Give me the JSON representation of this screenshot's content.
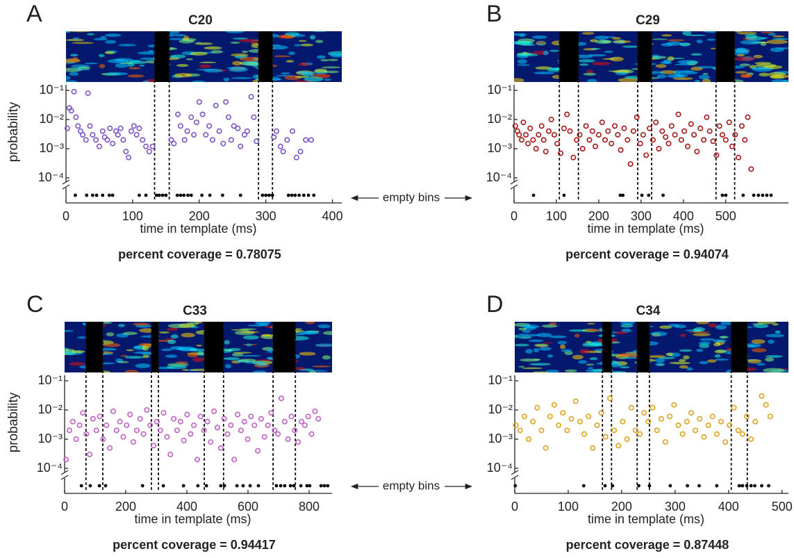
{
  "annotations": [
    "empty bins",
    "empty bins"
  ],
  "chart_data": [
    {
      "type": "scatter",
      "panel_label": "A",
      "title": "C20",
      "ylabel": "probability",
      "xlabel": "time in template (ms)",
      "footer": "percent coverage = 0.78075",
      "color": "#7b52c9",
      "yscale": "log",
      "xlim": [
        0,
        414
      ],
      "xticks": [
        0,
        100,
        200,
        300,
        400
      ],
      "ylim": [
        0.0001,
        0.1
      ],
      "yticks": [
        {
          "value": 0.1,
          "label": "10⁻¹"
        },
        {
          "value": 0.01,
          "label": "10⁻²"
        },
        {
          "value": 0.001,
          "label": "10⁻³"
        },
        {
          "value": 0.0001,
          "label": "10⁻⁴"
        }
      ],
      "dashed_lines": [
        133,
        155,
        289,
        310
      ],
      "empty_bins": [
        14,
        31,
        40,
        46,
        55,
        65,
        70,
        110,
        120,
        136,
        140,
        145,
        150,
        167,
        172,
        177,
        183,
        188,
        204,
        216,
        235,
        262,
        295,
        300,
        305,
        310,
        334,
        339,
        344,
        350,
        357,
        364,
        372
      ],
      "x": [
        2,
        5,
        8,
        12,
        15,
        18,
        22,
        25,
        30,
        33,
        36,
        40,
        45,
        50,
        55,
        58,
        62,
        66,
        70,
        75,
        78,
        82,
        86,
        90,
        94,
        98,
        102,
        106,
        110,
        115,
        120,
        125,
        130,
        158,
        162,
        168,
        172,
        178,
        182,
        188,
        192,
        196,
        200,
        205,
        210,
        215,
        220,
        225,
        230,
        236,
        240,
        244,
        248,
        252,
        258,
        262,
        268,
        272,
        278,
        282,
        286,
        312,
        316,
        322,
        326,
        332,
        340,
        346,
        352,
        360,
        368
      ],
      "values": [
        0.005,
        0.025,
        0.02,
        0.09,
        0.012,
        0.006,
        0.004,
        0.003,
        0.002,
        0.08,
        0.006,
        0.003,
        0.002,
        0.0012,
        0.004,
        0.0025,
        0.002,
        0.005,
        0.0015,
        0.004,
        0.003,
        0.005,
        0.002,
        0.0008,
        0.0005,
        0.004,
        0.006,
        0.003,
        0.005,
        0.002,
        0.0012,
        0.0008,
        0.0012,
        0.002,
        0.0015,
        0.015,
        0.006,
        0.002,
        0.004,
        0.012,
        0.003,
        0.008,
        0.04,
        0.015,
        0.003,
        0.006,
        0.002,
        0.03,
        0.004,
        0.0015,
        0.04,
        0.012,
        0.002,
        0.006,
        0.005,
        0.0012,
        0.003,
        0.004,
        0.06,
        0.012,
        0.0018,
        0.0025,
        0.004,
        0.0012,
        0.0008,
        0.002,
        0.004,
        0.0005,
        0.0008,
        0.002,
        0.002
      ]
    },
    {
      "type": "scatter",
      "panel_label": "B",
      "title": "C29",
      "xlabel": "time in template (ms)",
      "footer": "percent coverage = 0.94074",
      "color": "#a51515",
      "yscale": "log",
      "xlim": [
        0,
        648
      ],
      "xticks": [
        0,
        100,
        200,
        300,
        400,
        500
      ],
      "ylim": [
        0.0001,
        0.1
      ],
      "yticks": [
        {
          "value": 0.1,
          "label": "10⁻¹"
        },
        {
          "value": 0.01,
          "label": "10⁻²"
        },
        {
          "value": 0.001,
          "label": "10⁻³"
        },
        {
          "value": 0.0001,
          "label": "10⁻⁴"
        }
      ],
      "dashed_lines": [
        107,
        152,
        292,
        325,
        477,
        521
      ],
      "empty_bins": [
        46,
        118,
        251,
        257,
        302,
        318,
        352,
        492,
        500,
        541,
        566,
        577,
        587,
        597,
        607
      ],
      "x": [
        3,
        8,
        12,
        18,
        22,
        28,
        33,
        38,
        45,
        52,
        58,
        65,
        70,
        75,
        82,
        88,
        95,
        102,
        110,
        118,
        125,
        132,
        140,
        148,
        155,
        162,
        170,
        178,
        185,
        192,
        200,
        208,
        215,
        222,
        230,
        238,
        245,
        252,
        260,
        268,
        275,
        282,
        290,
        298,
        305,
        312,
        320,
        328,
        335,
        342,
        350,
        358,
        365,
        372,
        380,
        388,
        395,
        402,
        410,
        418,
        425,
        432,
        440,
        448,
        455,
        462,
        470,
        478,
        485,
        492,
        500,
        508,
        515,
        522,
        530,
        538,
        545,
        552,
        560
      ],
      "values": [
        0.006,
        0.004,
        0.003,
        0.002,
        0.008,
        0.003,
        0.0015,
        0.005,
        0.002,
        0.001,
        0.003,
        0.006,
        0.002,
        0.0008,
        0.004,
        0.01,
        0.003,
        0.0015,
        0.0007,
        0.005,
        0.015,
        0.004,
        0.0005,
        0.002,
        0.003,
        0.001,
        0.006,
        0.002,
        0.004,
        0.0012,
        0.003,
        0.008,
        0.002,
        0.004,
        0.0015,
        0.006,
        0.003,
        0.0009,
        0.005,
        0.002,
        0.0003,
        0.004,
        0.012,
        0.0015,
        0.003,
        0.0006,
        0.005,
        0.002,
        0.008,
        0.001,
        0.004,
        0.0025,
        0.0015,
        0.006,
        0.003,
        0.015,
        0.002,
        0.004,
        0.0012,
        0.007,
        0.003,
        0.0008,
        0.005,
        0.002,
        0.012,
        0.004,
        0.0018,
        0.0006,
        0.006,
        0.003,
        0.002,
        0.008,
        0.0012,
        0.003,
        0.0005,
        0.006,
        0.002,
        0.012,
        0.0002
      ]
    },
    {
      "type": "scatter",
      "panel_label": "C",
      "title": "C33",
      "ylabel": "probability",
      "xlabel": "time in template (ms)",
      "footer": "percent coverage = 0.94417",
      "color": "#c25ec6",
      "yscale": "log",
      "xlim": [
        0,
        875
      ],
      "xticks": [
        0,
        200,
        400,
        600,
        800
      ],
      "ylim": [
        0.0001,
        0.1
      ],
      "yticks": [
        {
          "value": 0.1,
          "label": "10⁻¹"
        },
        {
          "value": 0.01,
          "label": "10⁻²"
        },
        {
          "value": 0.001,
          "label": "10⁻³"
        },
        {
          "value": 0.0001,
          "label": "10⁻⁴"
        }
      ],
      "dashed_lines": [
        70,
        125,
        284,
        307,
        457,
        520,
        682,
        755
      ],
      "empty_bins": [
        55,
        84,
        114,
        134,
        255,
        323,
        389,
        436,
        464,
        511,
        523,
        564,
        584,
        607,
        634,
        693,
        707,
        720,
        739,
        750,
        773,
        793,
        802,
        839,
        850,
        861
      ],
      "x": [
        5,
        16,
        27,
        38,
        49,
        60,
        71,
        82,
        93,
        104,
        115,
        126,
        137,
        148,
        159,
        170,
        181,
        192,
        203,
        214,
        225,
        236,
        247,
        258,
        269,
        280,
        291,
        302,
        313,
        324,
        335,
        346,
        357,
        368,
        379,
        390,
        401,
        412,
        423,
        434,
        445,
        456,
        467,
        478,
        489,
        500,
        511,
        522,
        533,
        544,
        555,
        566,
        577,
        588,
        599,
        610,
        621,
        632,
        643,
        654,
        665,
        676,
        687,
        698,
        709,
        720,
        731,
        742,
        753,
        764,
        775,
        786,
        797,
        808,
        819,
        830
      ],
      "values": [
        0.0002,
        0.002,
        0.004,
        0.001,
        0.003,
        0.008,
        0.0015,
        0.0003,
        0.005,
        0.002,
        0.006,
        0.001,
        0.003,
        0.0005,
        0.009,
        0.002,
        0.004,
        0.0012,
        0.003,
        0.007,
        0.0008,
        0.002,
        0.005,
        0.0015,
        0.01,
        0.003,
        0.0006,
        0.004,
        0.002,
        0.008,
        0.0012,
        0.0003,
        0.005,
        0.002,
        0.004,
        0.0009,
        0.007,
        0.0015,
        0.003,
        0.0002,
        0.006,
        0.002,
        0.004,
        0.0008,
        0.009,
        0.0025,
        0.0005,
        0.005,
        0.0015,
        0.003,
        0.0002,
        0.007,
        0.002,
        0.004,
        0.001,
        0.006,
        0.003,
        0.0004,
        0.005,
        0.0012,
        0.003,
        0.008,
        0.002,
        0.0015,
        0.025,
        0.004,
        0.001,
        0.006,
        0.002,
        0.0008,
        0.004,
        0.003,
        0.006,
        0.0015,
        0.009,
        0.005
      ]
    },
    {
      "type": "scatter",
      "panel_label": "D",
      "title": "C34",
      "xlabel": "time in template (ms)",
      "footer": "percent coverage = 0.87448",
      "color": "#e0a11e",
      "yscale": "log",
      "xlim": [
        0,
        512
      ],
      "xticks": [
        0,
        100,
        200,
        300,
        400,
        500
      ],
      "ylim": [
        0.0001,
        0.1
      ],
      "yticks": [
        {
          "value": 0.1,
          "label": "10⁻¹"
        },
        {
          "value": 0.01,
          "label": "10⁻²"
        },
        {
          "value": 0.001,
          "label": "10⁻³"
        },
        {
          "value": 0.0001,
          "label": "10⁻⁴"
        }
      ],
      "dashed_lines": [
        164,
        181,
        229,
        252,
        405,
        435
      ],
      "empty_bins": [
        1,
        129,
        169,
        183,
        232,
        252,
        291,
        323,
        345,
        378,
        420,
        426,
        434,
        442,
        449,
        462,
        475
      ],
      "x": [
        2,
        10,
        18,
        26,
        34,
        42,
        50,
        58,
        66,
        74,
        82,
        90,
        98,
        106,
        114,
        122,
        130,
        138,
        146,
        154,
        162,
        170,
        178,
        186,
        194,
        202,
        210,
        218,
        226,
        234,
        242,
        250,
        258,
        266,
        274,
        282,
        290,
        298,
        306,
        314,
        322,
        330,
        338,
        346,
        354,
        362,
        370,
        378,
        386,
        394,
        402,
        410,
        418,
        426,
        434,
        442,
        450,
        462,
        470,
        478
      ],
      "values": [
        0.003,
        0.002,
        0.006,
        0.001,
        0.004,
        0.012,
        0.002,
        0.0005,
        0.006,
        0.015,
        0.003,
        0.008,
        0.002,
        0.005,
        0.02,
        0.004,
        0.0015,
        0.006,
        0.0005,
        0.003,
        0.008,
        0.0012,
        0.025,
        0.002,
        0.0006,
        0.004,
        0.001,
        0.012,
        0.002,
        0.0015,
        0.008,
        0.004,
        0.012,
        0.002,
        0.005,
        0.0008,
        0.006,
        0.015,
        0.003,
        0.0015,
        0.004,
        0.008,
        0.002,
        0.005,
        0.0012,
        0.003,
        0.006,
        0.0015,
        0.004,
        0.0008,
        0.003,
        0.012,
        0.002,
        0.0015,
        0.006,
        0.001,
        0.004,
        0.03,
        0.015,
        0.006
      ]
    }
  ]
}
